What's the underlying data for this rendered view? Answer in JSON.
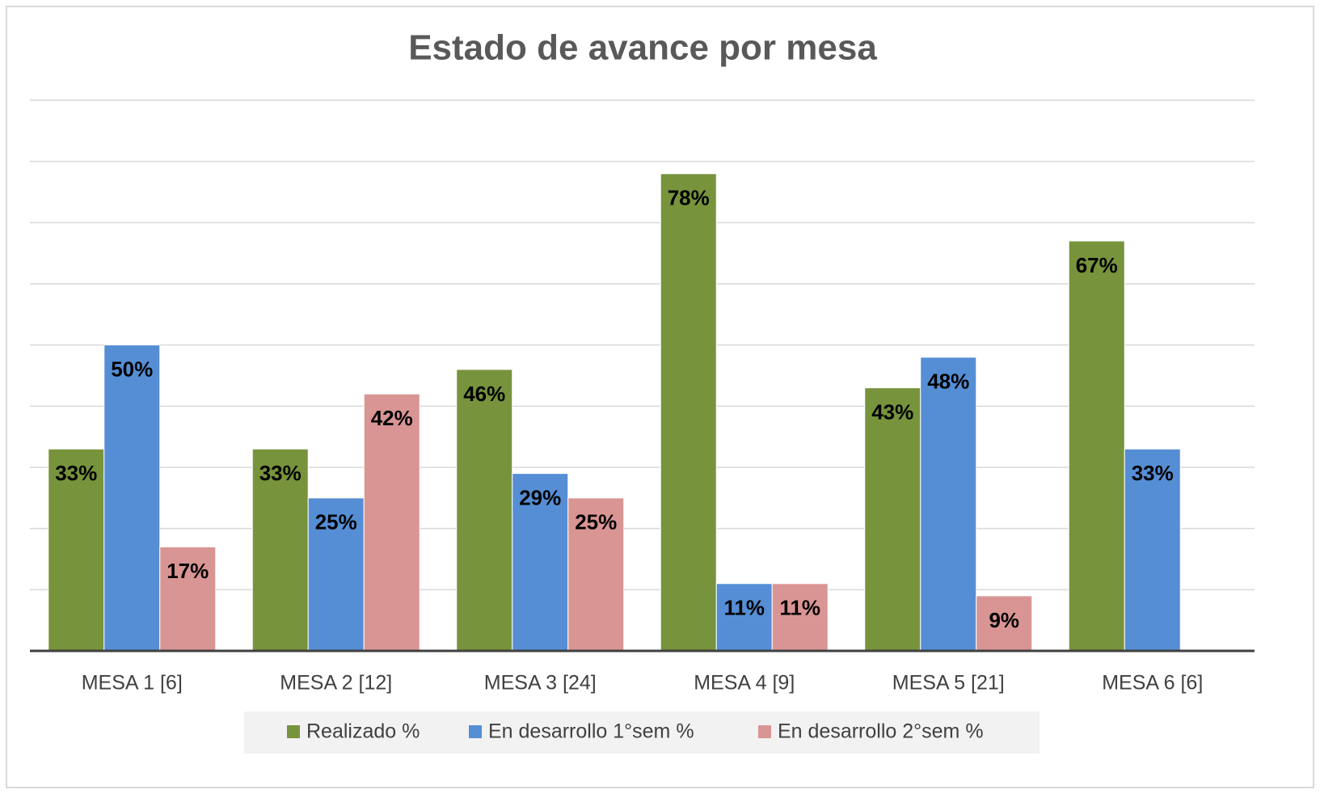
{
  "chart_data": {
    "type": "bar",
    "title": "Estado de avance por mesa",
    "categories": [
      "MESA 1 [6]",
      "MESA 2 [12]",
      "MESA 3 [24]",
      "MESA 4 [9]",
      "MESA 5 [21]",
      "MESA 6 [6]"
    ],
    "series": [
      {
        "name": "Realizado %",
        "color": "#77933c",
        "values": [
          33,
          33,
          46,
          78,
          43,
          67
        ],
        "value_labels": [
          "33%",
          "33%",
          "46%",
          "78%",
          "43%",
          "67%"
        ]
      },
      {
        "name": "En desarrollo 1°sem %",
        "color": "#558ed5",
        "values": [
          50,
          25,
          29,
          11,
          48,
          33
        ],
        "value_labels": [
          "50%",
          "25%",
          "29%",
          "11%",
          "48%",
          "33%"
        ]
      },
      {
        "name": "En desarrollo 2°sem %",
        "color": "#d99594",
        "values": [
          17,
          42,
          25,
          11,
          9,
          null
        ],
        "value_labels": [
          "17%",
          "42%",
          "25%",
          "11%",
          "9%",
          null
        ]
      }
    ],
    "ylim": [
      0,
      90
    ],
    "yticks": [
      0,
      10,
      20,
      30,
      40,
      50,
      60,
      70,
      80,
      90
    ],
    "grid": true,
    "legend": "bottom"
  }
}
